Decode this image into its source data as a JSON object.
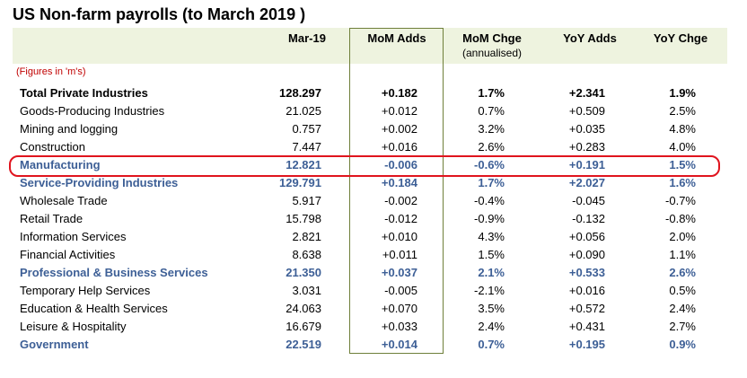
{
  "title": "US Non-farm payrolls (to March 2019 )",
  "units_note": "(Figures in 'm's)",
  "columns": {
    "mar19": "Mar-19",
    "mom_adds": "MoM Adds",
    "mom_chge": "MoM Chge",
    "mom_chge_sub": "(annualised)",
    "yoy_adds": "YoY Adds",
    "yoy_chge": "YoY Chge"
  },
  "colors": {
    "highlight_blue": "#3d5f96",
    "highlight_circle": "#e0141e",
    "header_band": "#eef3df",
    "units_note": "#c00000"
  },
  "rows": [
    {
      "name": "Total Private Industries",
      "mar19": "128.297",
      "mom_adds": "+0.182",
      "mom_chge": "1.7%",
      "yoy_adds": "+2.341",
      "yoy_chge": "1.9%",
      "style": "bold"
    },
    {
      "name": "Goods-Producing Industries",
      "mar19": "21.025",
      "mom_adds": "+0.012",
      "mom_chge": "0.7%",
      "yoy_adds": "+0.509",
      "yoy_chge": "2.5%",
      "style": "normal"
    },
    {
      "name": "Mining and logging",
      "mar19": "0.757",
      "mom_adds": "+0.002",
      "mom_chge": "3.2%",
      "yoy_adds": "+0.035",
      "yoy_chge": "4.8%",
      "style": "normal"
    },
    {
      "name": "Construction",
      "mar19": "7.447",
      "mom_adds": "+0.016",
      "mom_chge": "2.6%",
      "yoy_adds": "+0.283",
      "yoy_chge": "4.0%",
      "style": "normal"
    },
    {
      "name": "Manufacturing",
      "mar19": "12.821",
      "mom_adds": "-0.006",
      "mom_chge": "-0.6%",
      "yoy_adds": "+0.191",
      "yoy_chge": "1.5%",
      "style": "blue"
    },
    {
      "name": "Service-Providing Industries",
      "mar19": "129.791",
      "mom_adds": "+0.184",
      "mom_chge": "1.7%",
      "yoy_adds": "+2.027",
      "yoy_chge": "1.6%",
      "style": "blue"
    },
    {
      "name": "Wholesale Trade",
      "mar19": "5.917",
      "mom_adds": "-0.002",
      "mom_chge": "-0.4%",
      "yoy_adds": "-0.045",
      "yoy_chge": "-0.7%",
      "style": "normal"
    },
    {
      "name": "Retail Trade",
      "mar19": "15.798",
      "mom_adds": "-0.012",
      "mom_chge": "-0.9%",
      "yoy_adds": "-0.132",
      "yoy_chge": "-0.8%",
      "style": "normal"
    },
    {
      "name": "Information Services",
      "mar19": "2.821",
      "mom_adds": "+0.010",
      "mom_chge": "4.3%",
      "yoy_adds": "+0.056",
      "yoy_chge": "2.0%",
      "style": "normal"
    },
    {
      "name": "Financial Activities",
      "mar19": "8.638",
      "mom_adds": "+0.011",
      "mom_chge": "1.5%",
      "yoy_adds": "+0.090",
      "yoy_chge": "1.1%",
      "style": "normal"
    },
    {
      "name": "Professional & Business Services",
      "mar19": "21.350",
      "mom_adds": "+0.037",
      "mom_chge": "2.1%",
      "yoy_adds": "+0.533",
      "yoy_chge": "2.6%",
      "style": "blue"
    },
    {
      "name": "Temporary Help Services",
      "mar19": "3.031",
      "mom_adds": "-0.005",
      "mom_chge": "-2.1%",
      "yoy_adds": "+0.016",
      "yoy_chge": "0.5%",
      "style": "normal"
    },
    {
      "name": "Education & Health Services",
      "mar19": "24.063",
      "mom_adds": "+0.070",
      "mom_chge": "3.5%",
      "yoy_adds": "+0.572",
      "yoy_chge": "2.4%",
      "style": "normal"
    },
    {
      "name": "Leisure & Hospitality",
      "mar19": "16.679",
      "mom_adds": "+0.033",
      "mom_chge": "2.4%",
      "yoy_adds": "+0.431",
      "yoy_chge": "2.7%",
      "style": "normal"
    },
    {
      "name": "Government",
      "mar19": "22.519",
      "mom_adds": "+0.014",
      "mom_chge": "0.7%",
      "yoy_adds": "+0.195",
      "yoy_chge": "0.9%",
      "style": "blue"
    }
  ]
}
